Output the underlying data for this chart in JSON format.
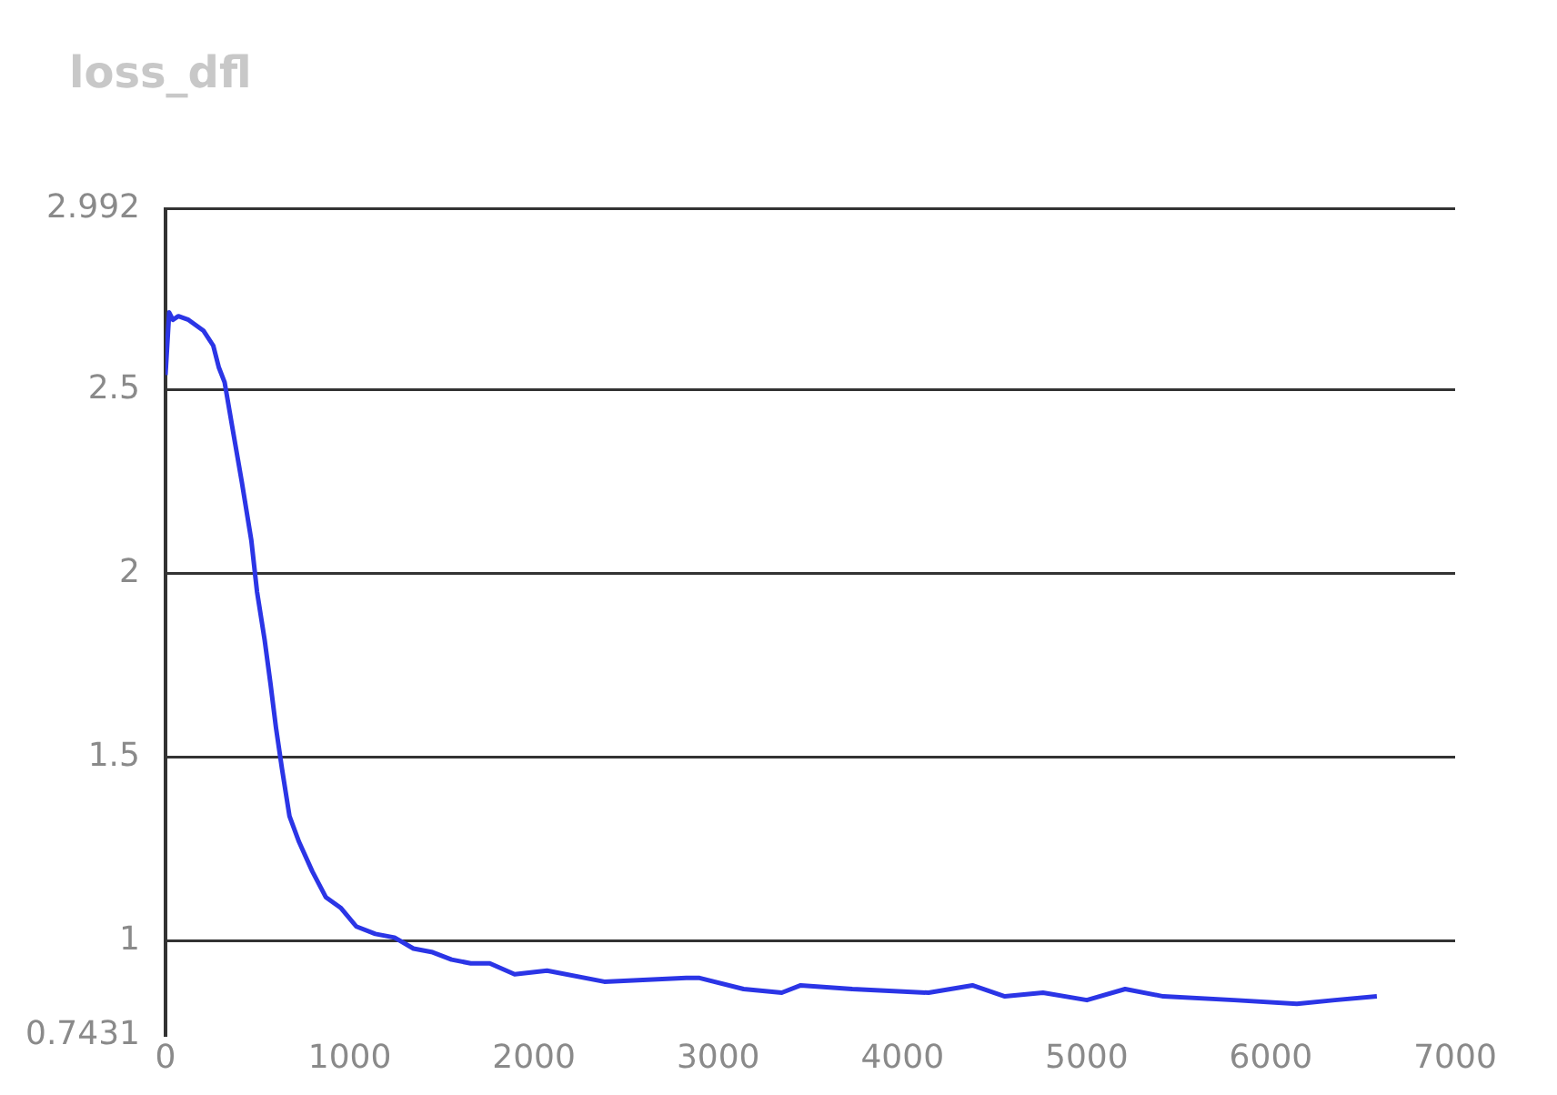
{
  "chart_data": {
    "type": "line",
    "title": "loss_dfl",
    "x": [
      0,
      20,
      40,
      70,
      125,
      207,
      259,
      290,
      321,
      362,
      414,
      466,
      497,
      538,
      570,
      600,
      632,
      673,
      725,
      797,
      870,
      953,
      1036,
      1139,
      1243,
      1346,
      1450,
      1553,
      1657,
      1760,
      1895,
      2071,
      2382,
      2827,
      2899,
      3138,
      3345,
      3448,
      3728,
      4142,
      4380,
      4556,
      4763,
      5001,
      5209,
      5416,
      5799,
      6141,
      6348,
      6575
    ],
    "series": [
      {
        "color": "#2b35e6",
        "values": [
          2.54,
          2.71,
          2.69,
          2.7,
          2.69,
          2.66,
          2.62,
          2.56,
          2.52,
          2.4,
          2.25,
          2.09,
          1.95,
          1.82,
          1.7,
          1.58,
          1.47,
          1.34,
          1.27,
          1.19,
          1.12,
          1.09,
          1.04,
          1.02,
          1.01,
          0.98,
          0.97,
          0.95,
          0.94,
          0.94,
          0.91,
          0.92,
          0.89,
          0.9,
          0.9,
          0.87,
          0.86,
          0.88,
          0.87,
          0.86,
          0.88,
          0.85,
          0.86,
          0.84,
          0.87,
          0.85,
          0.84,
          0.83,
          0.84,
          0.85
        ]
      }
    ],
    "xlim": [
      0,
      7000
    ],
    "xticks": [
      0,
      1000,
      2000,
      3000,
      4000,
      5000,
      6000,
      7000
    ],
    "ylim": [
      0.7431,
      2.992
    ],
    "yticks": [
      0.7431,
      1,
      1.5,
      2,
      2.5,
      2.992
    ],
    "grid": "y",
    "legend": false,
    "marker": "none",
    "line_style": "solid"
  }
}
